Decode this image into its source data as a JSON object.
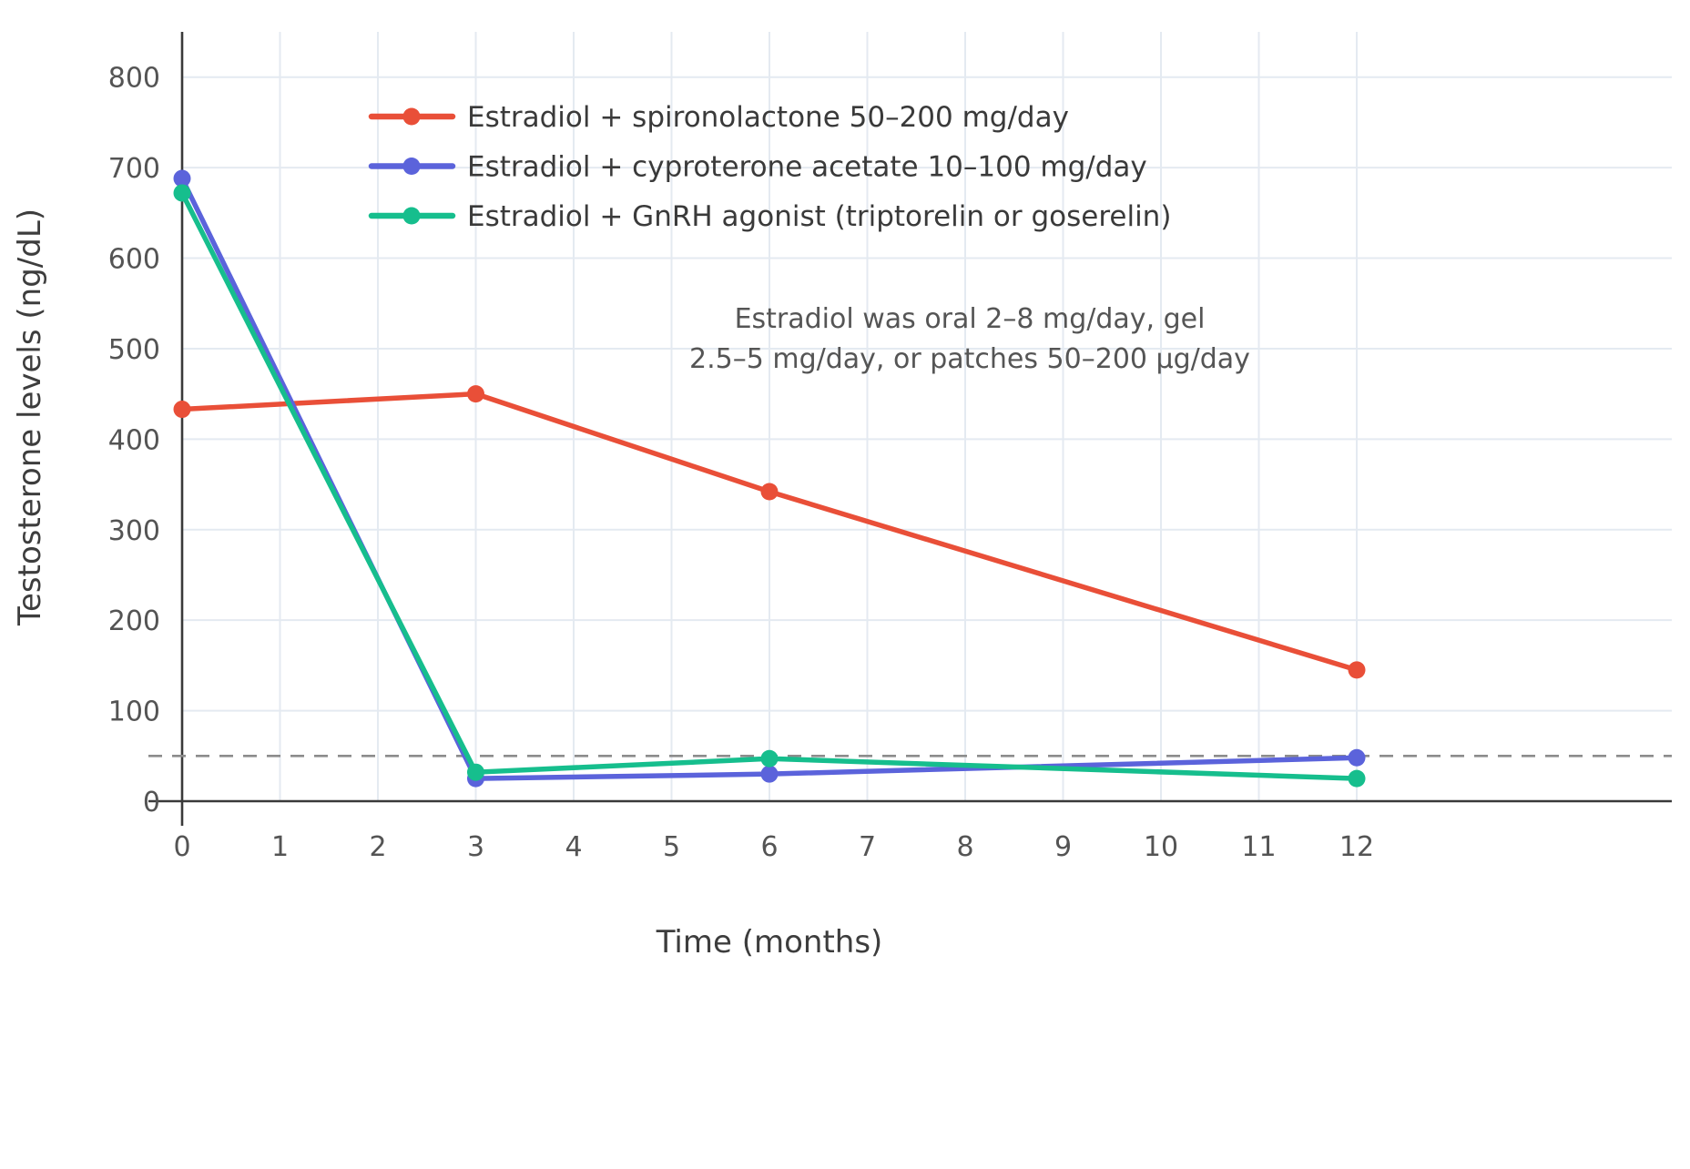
{
  "figure": {
    "background": "#ffffff",
    "axis_color": "#3A3A3A",
    "grid_color": "#E4EAF1"
  },
  "chart_data": {
    "type": "line",
    "xlabel": "Time (months)",
    "ylabel": "Testosterone levels (ng/dL)",
    "x": [
      0,
      3,
      6,
      12
    ],
    "series": [
      {
        "name": "Estradiol + spironolactone 50–200 mg/day",
        "color": "#E94F38",
        "values": [
          433,
          450,
          342,
          145
        ]
      },
      {
        "name": "Estradiol + cyproterone acetate 10–100 mg/day",
        "color": "#5B63DB",
        "values": [
          688,
          25,
          30,
          48
        ]
      },
      {
        "name": "Estradiol + GnRH agonist (triptorelin or goserelin)",
        "color": "#16BE8D",
        "values": [
          672,
          32,
          47,
          25
        ]
      }
    ],
    "xticks": [
      0,
      1,
      2,
      3,
      4,
      5,
      6,
      7,
      8,
      9,
      10,
      11,
      12
    ],
    "yticks": [
      0,
      100,
      200,
      300,
      400,
      500,
      600,
      700,
      800
    ],
    "xlim": [
      0,
      12
    ],
    "ylim": [
      0,
      850
    ],
    "grid": true,
    "legend_position": "inside-top-left",
    "reference_line": {
      "y": 50,
      "style": "dashed",
      "color": "#8C8C8C"
    },
    "annotation": {
      "line1": "Estradiol was oral 2–8 mg/day, gel",
      "line2": "2.5–5 mg/day, or patches 50–200 µg/day"
    }
  }
}
